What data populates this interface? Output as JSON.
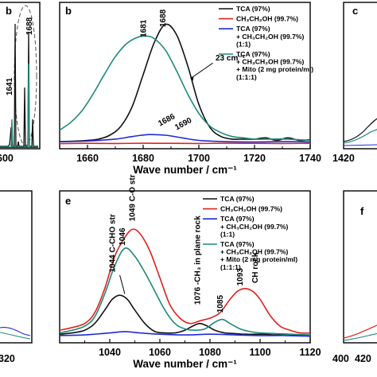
{
  "colors": {
    "black": "#111111",
    "red": "#e0221c",
    "blue": "#1f2bd6",
    "teal": "#1d8a78"
  },
  "left_strip_top": {
    "panel_label": "b",
    "tick_labels": [
      "600"
    ],
    "peak_labels": [
      "1688",
      "1641"
    ]
  },
  "left_strip_bottom": {
    "tick_labels": [
      "320"
    ]
  },
  "right_strip_top": {
    "panel_label": "c",
    "tick_labels": [
      "1420"
    ]
  },
  "right_strip_bottom": {
    "panel_label": "f",
    "tick_labels": [
      "400",
      "420"
    ]
  },
  "chart_data": [
    {
      "id": "panel-b",
      "panel_label": "b",
      "type": "line",
      "xlabel": "Wave number / cm⁻¹",
      "xlim": [
        1650,
        1740
      ],
      "xticks": [
        "1660",
        "1680",
        "1700",
        "1720",
        "1740"
      ],
      "ylim": [
        0,
        1
      ],
      "grid": false,
      "legend_position": "top-right",
      "legend": [
        {
          "color": "black",
          "lines": [
            "TCA (97%)"
          ]
        },
        {
          "color": "red",
          "lines": [
            "CH₃CH₂OH (99.7%)"
          ]
        },
        {
          "color": "blue",
          "lines": [
            "TCA (97%)",
            "+ CH₃CH₂OH (99.7%)",
            "(1:1)"
          ]
        },
        {
          "color": "teal",
          "lines": [
            "TCA (97%)",
            "+ CH₃CH₂OH (99.7%)",
            "+ Mito (2 mg protein/ml)",
            "(1:1:1)"
          ]
        }
      ],
      "annotations": [
        {
          "text": "1681",
          "x": 1681,
          "y": 0.84,
          "rotate": -90
        },
        {
          "text": "1688",
          "x": 1688,
          "y": 0.92,
          "rotate": -90
        },
        {
          "text": "23 cm⁻¹",
          "x": 1706,
          "y": 0.66
        },
        {
          "text": "1686",
          "x": 1686,
          "y": 0.15,
          "rotate": -28
        },
        {
          "text": "1690",
          "x": 1692,
          "y": 0.12,
          "rotate": -28
        }
      ],
      "series": [
        {
          "color": "black",
          "x": [
            1650,
            1656,
            1660,
            1664,
            1668,
            1672,
            1676,
            1680,
            1684,
            1688,
            1692,
            1696,
            1700,
            1704,
            1708,
            1712,
            1716,
            1720,
            1724,
            1728,
            1732,
            1736,
            1740
          ],
          "y": [
            0.03,
            0.035,
            0.04,
            0.05,
            0.08,
            0.15,
            0.3,
            0.55,
            0.8,
            0.94,
            0.86,
            0.62,
            0.32,
            0.14,
            0.07,
            0.05,
            0.05,
            0.05,
            0.06,
            0.04,
            0.06,
            0.04,
            0.045
          ]
        },
        {
          "color": "red",
          "x": [
            1650,
            1660,
            1670,
            1680,
            1690,
            1700,
            1710,
            1720,
            1730,
            1740
          ],
          "y": [
            0.015,
            0.017,
            0.016,
            0.018,
            0.017,
            0.016,
            0.018,
            0.017,
            0.016,
            0.017
          ]
        },
        {
          "color": "blue",
          "x": [
            1650,
            1660,
            1670,
            1676,
            1682,
            1688,
            1694,
            1700,
            1710,
            1720,
            1730,
            1740
          ],
          "y": [
            0.03,
            0.035,
            0.05,
            0.07,
            0.085,
            0.08,
            0.06,
            0.04,
            0.03,
            0.028,
            0.03,
            0.028
          ]
        },
        {
          "color": "teal",
          "x": [
            1650,
            1654,
            1658,
            1662,
            1666,
            1670,
            1674,
            1678,
            1681,
            1684,
            1688,
            1692,
            1696,
            1700,
            1704,
            1708,
            1712,
            1716,
            1720,
            1726,
            1732,
            1740
          ],
          "y": [
            0.12,
            0.18,
            0.27,
            0.4,
            0.55,
            0.69,
            0.79,
            0.84,
            0.85,
            0.83,
            0.74,
            0.58,
            0.4,
            0.25,
            0.15,
            0.1,
            0.07,
            0.06,
            0.05,
            0.05,
            0.05,
            0.04
          ]
        }
      ]
    },
    {
      "id": "panel-e",
      "panel_label": "e",
      "type": "line",
      "xlabel": "Wave number / cm⁻¹",
      "xlim": [
        1020,
        1120
      ],
      "xticks": [
        "1040",
        "1060",
        "1080",
        "1100",
        "1120"
      ],
      "ylim": [
        0,
        1
      ],
      "grid": false,
      "legend_position": "top-right",
      "legend": [
        {
          "color": "black",
          "lines": [
            "TCA (97%)"
          ]
        },
        {
          "color": "red",
          "lines": [
            "CH₃CH₂OH (99.7%)"
          ]
        },
        {
          "color": "blue",
          "lines": [
            "TCA (97%)",
            "+ CH₃CH₂OH (99.7%)",
            "(1:1)"
          ]
        },
        {
          "color": "teal",
          "lines": [
            "TCA (97%)",
            "+ CH₃CH₂OH (99.7%)",
            "+ Mito (2 mg protein/ml)",
            "(1:1:1)"
          ]
        }
      ],
      "annotations": [
        {
          "text": "1044 C-CHO str",
          "x": 1042,
          "y": 0.5,
          "rotate": -90
        },
        {
          "text": "1046",
          "x": 1046,
          "y": 0.7,
          "rotate": -90
        },
        {
          "text": "1049 C-O str",
          "x": 1050,
          "y": 0.88,
          "rotate": -90
        },
        {
          "text": "1076 -CH₃ in plane rock",
          "x": 1076,
          "y": 0.26,
          "rotate": -90
        },
        {
          "text": "1085",
          "x": 1085,
          "y": 0.2,
          "rotate": -90
        },
        {
          "text": "1093",
          "x": 1093,
          "y": 0.4,
          "rotate": -90
        },
        {
          "text": "CH rock",
          "x": 1099,
          "y": 0.42,
          "rotate": -90
        }
      ],
      "series": [
        {
          "color": "black",
          "x": [
            1020,
            1025,
            1030,
            1034,
            1038,
            1041,
            1044,
            1047,
            1050,
            1054,
            1058,
            1062,
            1066,
            1070,
            1073,
            1076,
            1079,
            1082,
            1086,
            1090,
            1094,
            1098,
            1102,
            1106,
            1110,
            1114,
            1120
          ],
          "y": [
            0.04,
            0.05,
            0.07,
            0.12,
            0.22,
            0.3,
            0.33,
            0.3,
            0.22,
            0.12,
            0.06,
            0.05,
            0.05,
            0.07,
            0.1,
            0.12,
            0.1,
            0.07,
            0.05,
            0.045,
            0.04,
            0.04,
            0.04,
            0.035,
            0.04,
            0.035,
            0.03
          ]
        },
        {
          "color": "red",
          "x": [
            1020,
            1025,
            1030,
            1034,
            1038,
            1042,
            1046,
            1049,
            1052,
            1056,
            1060,
            1064,
            1068,
            1072,
            1076,
            1080,
            1084,
            1088,
            1091,
            1094,
            1097,
            1100,
            1104,
            1108,
            1112,
            1116,
            1120
          ],
          "y": [
            0.07,
            0.09,
            0.12,
            0.2,
            0.38,
            0.62,
            0.76,
            0.82,
            0.79,
            0.66,
            0.46,
            0.26,
            0.16,
            0.12,
            0.14,
            0.16,
            0.2,
            0.3,
            0.36,
            0.38,
            0.36,
            0.3,
            0.18,
            0.1,
            0.07,
            0.05,
            0.05
          ]
        },
        {
          "color": "blue",
          "x": [
            1020,
            1030,
            1040,
            1046,
            1052,
            1060,
            1070,
            1080,
            1090,
            1100,
            1110,
            1120
          ],
          "y": [
            0.03,
            0.035,
            0.05,
            0.06,
            0.05,
            0.04,
            0.035,
            0.04,
            0.035,
            0.03,
            0.03,
            0.025
          ]
        },
        {
          "color": "teal",
          "x": [
            1020,
            1025,
            1030,
            1034,
            1038,
            1042,
            1046,
            1050,
            1054,
            1058,
            1062,
            1066,
            1070,
            1074,
            1078,
            1082,
            1085,
            1088,
            1092,
            1096,
            1100,
            1106,
            1112,
            1120
          ],
          "y": [
            0.05,
            0.07,
            0.1,
            0.17,
            0.34,
            0.55,
            0.68,
            0.62,
            0.5,
            0.36,
            0.22,
            0.12,
            0.08,
            0.07,
            0.08,
            0.13,
            0.15,
            0.12,
            0.08,
            0.06,
            0.05,
            0.045,
            0.04,
            0.035
          ]
        }
      ]
    }
  ]
}
